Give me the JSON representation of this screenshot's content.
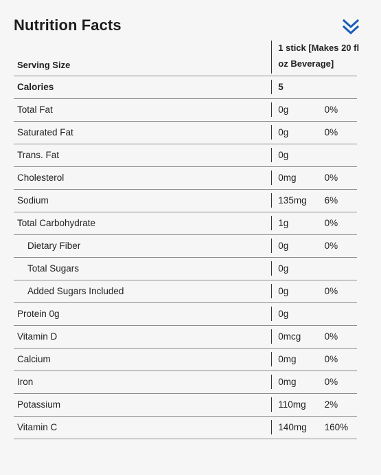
{
  "panel": {
    "title": "Nutrition Facts",
    "collapse_icon": "double-chevron-down-icon",
    "accent_color": "#1a5eb8"
  },
  "serving": {
    "label": "Serving Size",
    "value_line1": "1 stick [Makes 20 fl",
    "value_line2": "oz Beverage]"
  },
  "calories": {
    "label": "Calories",
    "value": "5"
  },
  "nutrients": [
    {
      "label": "Total Fat",
      "amount": "0g",
      "dv": "0%",
      "indent": false
    },
    {
      "label": "Saturated Fat",
      "amount": "0g",
      "dv": "0%",
      "indent": false
    },
    {
      "label": "Trans. Fat",
      "amount": "0g",
      "dv": "",
      "indent": false
    },
    {
      "label": "Cholesterol",
      "amount": "0mg",
      "dv": "0%",
      "indent": false
    },
    {
      "label": "Sodium",
      "amount": "135mg",
      "dv": "6%",
      "indent": false
    },
    {
      "label": "Total Carbohydrate",
      "amount": "1g",
      "dv": "0%",
      "indent": false
    },
    {
      "label": "Dietary Fiber",
      "amount": "0g",
      "dv": "0%",
      "indent": true
    },
    {
      "label": "Total Sugars",
      "amount": "0g",
      "dv": "",
      "indent": true
    },
    {
      "label": "Added Sugars Included",
      "amount": "0g",
      "dv": "0%",
      "indent": true
    },
    {
      "label": "Protein 0g",
      "amount": "0g",
      "dv": "",
      "indent": false
    },
    {
      "label": "Vitamin D",
      "amount": "0mcg",
      "dv": "0%",
      "indent": false
    },
    {
      "label": "Calcium",
      "amount": "0mg",
      "dv": "0%",
      "indent": false
    },
    {
      "label": "Iron",
      "amount": "0mg",
      "dv": "0%",
      "indent": false
    },
    {
      "label": "Potassium",
      "amount": "110mg",
      "dv": "2%",
      "indent": false
    },
    {
      "label": "Vitamin C",
      "amount": "140mg",
      "dv": "160%",
      "indent": false
    }
  ]
}
